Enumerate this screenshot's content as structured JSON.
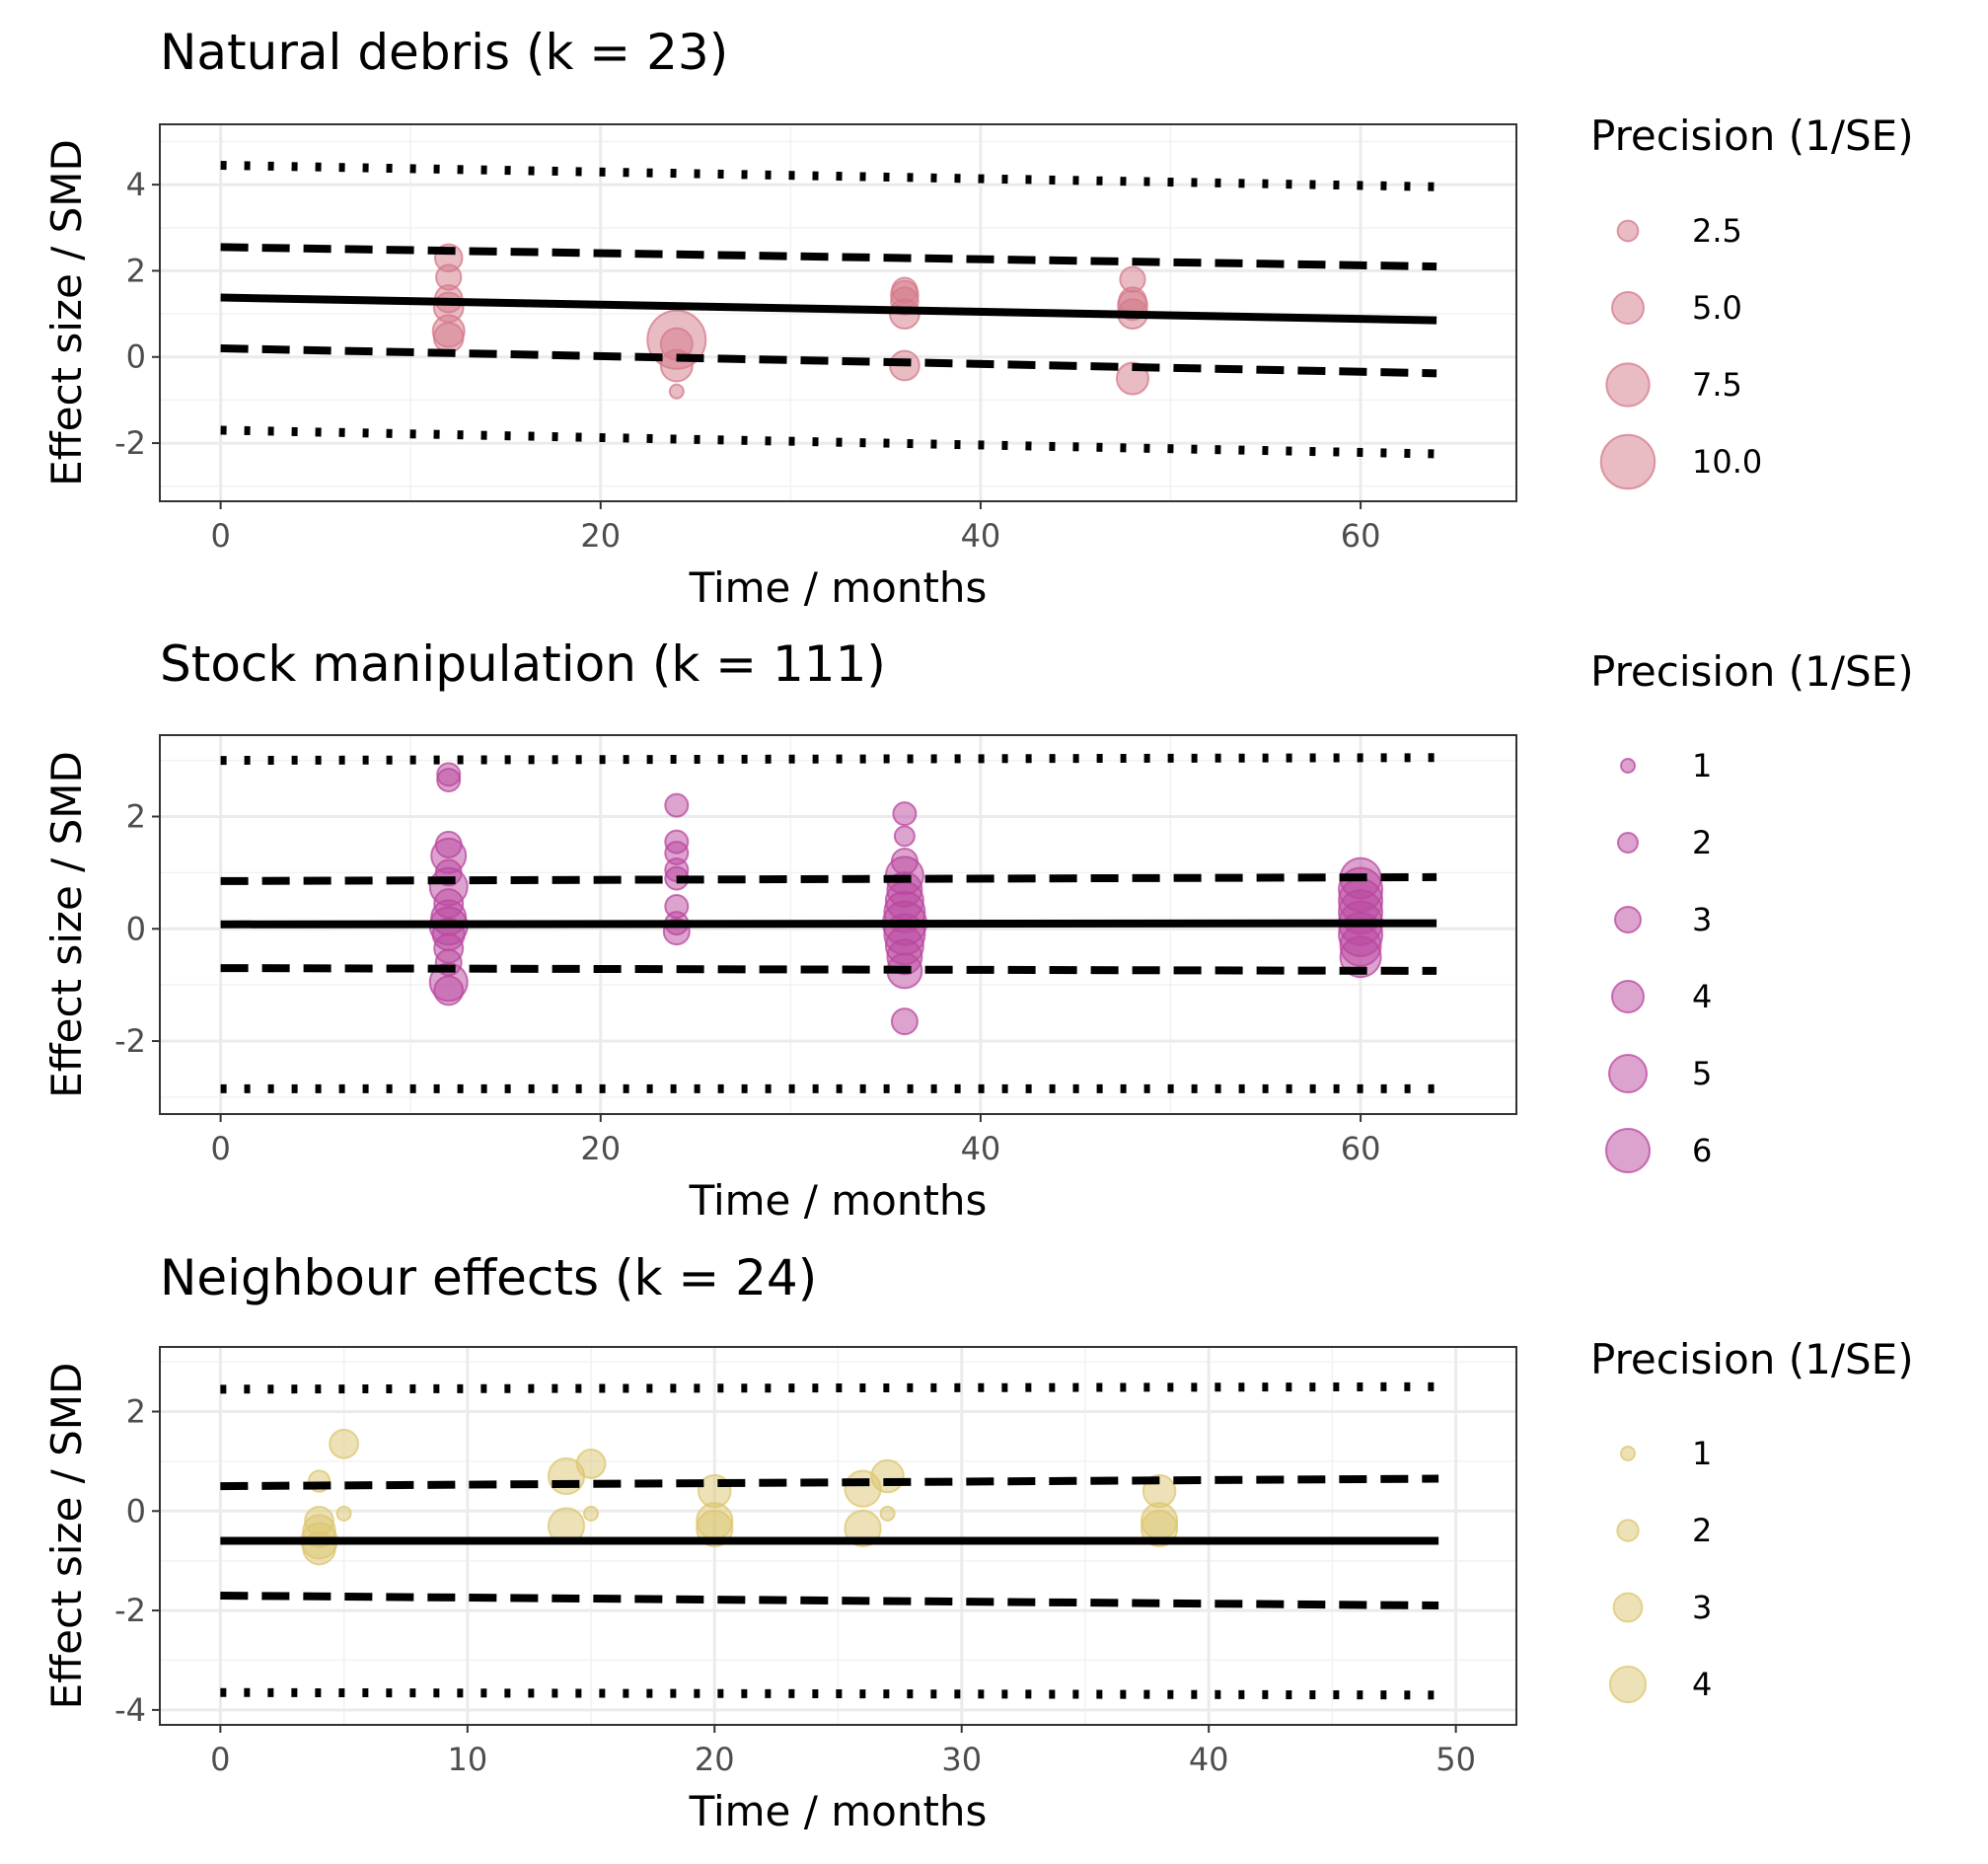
{
  "chart_data": [
    {
      "type": "scatter",
      "title": "Natural debris (k = 23)",
      "xlabel": "Time / months",
      "ylabel": "Effect size / SMD",
      "xlim": [
        -3.2,
        68.2
      ],
      "ylim": [
        -3.35,
        5.4
      ],
      "x_ticks": [
        0,
        20,
        40,
        60
      ],
      "y_ticks": [
        -2,
        0,
        2,
        4
      ],
      "grid": true,
      "color": "#D47A8A",
      "points": [
        {
          "x": 12,
          "y": 2.3,
          "precision": 4.0
        },
        {
          "x": 12,
          "y": 1.85,
          "precision": 3.5
        },
        {
          "x": 12,
          "y": 1.35,
          "precision": 4.0
        },
        {
          "x": 12,
          "y": 1.15,
          "precision": 4.5
        },
        {
          "x": 12,
          "y": 0.6,
          "precision": 5.0
        },
        {
          "x": 12,
          "y": 0.45,
          "precision": 4.5
        },
        {
          "x": 24,
          "y": 0.4,
          "precision": 11.0
        },
        {
          "x": 24,
          "y": 0.3,
          "precision": 5.0
        },
        {
          "x": 24,
          "y": -0.2,
          "precision": 5.0
        },
        {
          "x": 24,
          "y": -0.8,
          "precision": 1.0
        },
        {
          "x": 36,
          "y": 1.55,
          "precision": 3.5
        },
        {
          "x": 36,
          "y": 1.45,
          "precision": 4.0
        },
        {
          "x": 36,
          "y": 1.3,
          "precision": 4.0
        },
        {
          "x": 36,
          "y": 1.0,
          "precision": 4.5
        },
        {
          "x": 36,
          "y": -0.2,
          "precision": 4.5
        },
        {
          "x": 48,
          "y": 1.8,
          "precision": 3.5
        },
        {
          "x": 48,
          "y": 1.3,
          "precision": 4.0
        },
        {
          "x": 48,
          "y": 1.2,
          "precision": 4.5
        },
        {
          "x": 48,
          "y": 1.0,
          "precision": 4.5
        },
        {
          "x": 48,
          "y": -0.5,
          "precision": 5.0
        }
      ],
      "fit": {
        "x": [
          0,
          64
        ],
        "y": [
          1.38,
          0.85
        ]
      },
      "ci_upper": {
        "x": [
          0,
          64
        ],
        "y": [
          2.55,
          2.1
        ]
      },
      "ci_lower": {
        "x": [
          0,
          64
        ],
        "y": [
          0.2,
          -0.38
        ]
      },
      "pi_upper": {
        "x": [
          0,
          64
        ],
        "y": [
          4.45,
          3.95
        ]
      },
      "pi_lower": {
        "x": [
          0,
          64
        ],
        "y": [
          -1.7,
          -2.25
        ]
      },
      "legend": {
        "title": "Precision (1/SE)",
        "labels": [
          "2.5",
          "5.0",
          "7.5",
          "10.0"
        ],
        "values": [
          2.5,
          5.0,
          7.5,
          10.0
        ]
      }
    },
    {
      "type": "scatter",
      "title": "Stock manipulation (k = 111)",
      "xlabel": "Time / months",
      "ylabel": "Effect size / SMD",
      "xlim": [
        -3.2,
        68.2
      ],
      "ylim": [
        -3.3,
        3.45
      ],
      "x_ticks": [
        0,
        20,
        40,
        60
      ],
      "y_ticks": [
        -2,
        0,
        2
      ],
      "grid": true,
      "color": "#B9479F",
      "points": [
        {
          "x": 12,
          "y": 2.75,
          "precision": 2.5
        },
        {
          "x": 12,
          "y": 2.65,
          "precision": 2.5
        },
        {
          "x": 12,
          "y": 1.5,
          "precision": 3.0
        },
        {
          "x": 12,
          "y": 1.3,
          "precision": 4.5
        },
        {
          "x": 12,
          "y": 1.0,
          "precision": 3.0
        },
        {
          "x": 12,
          "y": 0.75,
          "precision": 5.0
        },
        {
          "x": 12,
          "y": 0.45,
          "precision": 3.5
        },
        {
          "x": 12,
          "y": 0.2,
          "precision": 4.5
        },
        {
          "x": 12,
          "y": 0.05,
          "precision": 5.0
        },
        {
          "x": 12,
          "y": -0.1,
          "precision": 4.0
        },
        {
          "x": 12,
          "y": -0.35,
          "precision": 3.5
        },
        {
          "x": 12,
          "y": -0.6,
          "precision": 3.0
        },
        {
          "x": 12,
          "y": -0.95,
          "precision": 5.0
        },
        {
          "x": 12,
          "y": -1.1,
          "precision": 3.5
        },
        {
          "x": 24,
          "y": 2.2,
          "precision": 2.5
        },
        {
          "x": 24,
          "y": 1.55,
          "precision": 2.5
        },
        {
          "x": 24,
          "y": 1.35,
          "precision": 2.5
        },
        {
          "x": 24,
          "y": 1.05,
          "precision": 2.5
        },
        {
          "x": 24,
          "y": 0.9,
          "precision": 2.5
        },
        {
          "x": 24,
          "y": 0.4,
          "precision": 2.5
        },
        {
          "x": 24,
          "y": 0.1,
          "precision": 2.5
        },
        {
          "x": 24,
          "y": -0.05,
          "precision": 3.0
        },
        {
          "x": 36,
          "y": 2.05,
          "precision": 2.5
        },
        {
          "x": 36,
          "y": 1.65,
          "precision": 2.0
        },
        {
          "x": 36,
          "y": 1.2,
          "precision": 3.0
        },
        {
          "x": 36,
          "y": 0.95,
          "precision": 5.0
        },
        {
          "x": 36,
          "y": 0.7,
          "precision": 4.5
        },
        {
          "x": 36,
          "y": 0.5,
          "precision": 5.0
        },
        {
          "x": 36,
          "y": 0.3,
          "precision": 5.5
        },
        {
          "x": 36,
          "y": 0.1,
          "precision": 6.0
        },
        {
          "x": 36,
          "y": -0.1,
          "precision": 5.5
        },
        {
          "x": 36,
          "y": -0.3,
          "precision": 5.0
        },
        {
          "x": 36,
          "y": -0.5,
          "precision": 4.5
        },
        {
          "x": 36,
          "y": -0.75,
          "precision": 4.5
        },
        {
          "x": 36,
          "y": -1.65,
          "precision": 3.0
        },
        {
          "x": 60,
          "y": 0.9,
          "precision": 5.5
        },
        {
          "x": 60,
          "y": 0.7,
          "precision": 6.0
        },
        {
          "x": 60,
          "y": 0.5,
          "precision": 6.0
        },
        {
          "x": 60,
          "y": 0.3,
          "precision": 6.0
        },
        {
          "x": 60,
          "y": 0.1,
          "precision": 6.0
        },
        {
          "x": 60,
          "y": -0.1,
          "precision": 6.0
        },
        {
          "x": 60,
          "y": -0.3,
          "precision": 5.5
        },
        {
          "x": 60,
          "y": -0.5,
          "precision": 5.5
        }
      ],
      "fit": {
        "x": [
          0,
          64
        ],
        "y": [
          0.08,
          0.1
        ]
      },
      "ci_upper": {
        "x": [
          0,
          64
        ],
        "y": [
          0.85,
          0.92
        ]
      },
      "ci_lower": {
        "x": [
          0,
          64
        ],
        "y": [
          -0.7,
          -0.75
        ]
      },
      "pi_upper": {
        "x": [
          0,
          64
        ],
        "y": [
          3.0,
          3.05
        ]
      },
      "pi_lower": {
        "x": [
          0,
          64
        ],
        "y": [
          -2.85,
          -2.85
        ]
      },
      "legend": {
        "title": "Precision (1/SE)",
        "labels": [
          "1",
          "2",
          "3",
          "4",
          "5",
          "6"
        ],
        "values": [
          1,
          2,
          3,
          4,
          5,
          6
        ]
      }
    },
    {
      "type": "scatter",
      "title": "Neighbour effects (k = 24)",
      "xlabel": "Time / months",
      "ylabel": "Effect size / SMD",
      "xlim": [
        -2.45,
        52.45
      ],
      "ylim": [
        -4.3,
        3.3
      ],
      "x_ticks": [
        0,
        10,
        20,
        30,
        40,
        50
      ],
      "y_ticks": [
        -4,
        -2,
        0,
        2
      ],
      "grid": true,
      "color": "#DCC56F",
      "points": [
        {
          "x": 4,
          "y": 0.6,
          "precision": 2.0
        },
        {
          "x": 4,
          "y": -0.2,
          "precision": 3.0
        },
        {
          "x": 4,
          "y": -0.4,
          "precision": 3.5
        },
        {
          "x": 4,
          "y": -0.6,
          "precision": 4.0
        },
        {
          "x": 4,
          "y": -0.75,
          "precision": 3.5
        },
        {
          "x": 5,
          "y": 1.35,
          "precision": 3.0
        },
        {
          "x": 5,
          "y": -0.05,
          "precision": 1.0
        },
        {
          "x": 14,
          "y": 0.7,
          "precision": 4.0
        },
        {
          "x": 14,
          "y": -0.3,
          "precision": 4.0
        },
        {
          "x": 15,
          "y": 0.95,
          "precision": 3.0
        },
        {
          "x": 15,
          "y": -0.05,
          "precision": 1.0
        },
        {
          "x": 20,
          "y": 0.4,
          "precision": 3.5
        },
        {
          "x": 20,
          "y": -0.2,
          "precision": 4.0
        },
        {
          "x": 20,
          "y": -0.35,
          "precision": 4.0
        },
        {
          "x": 26,
          "y": 0.45,
          "precision": 4.0
        },
        {
          "x": 26,
          "y": -0.35,
          "precision": 4.0
        },
        {
          "x": 27,
          "y": 0.7,
          "precision": 3.5
        },
        {
          "x": 27,
          "y": -0.05,
          "precision": 1.0
        },
        {
          "x": 38,
          "y": 0.4,
          "precision": 3.5
        },
        {
          "x": 38,
          "y": -0.2,
          "precision": 4.0
        },
        {
          "x": 38,
          "y": -0.35,
          "precision": 4.0
        }
      ],
      "fit": {
        "x": [
          0,
          49.3
        ],
        "y": [
          -0.6,
          -0.6
        ]
      },
      "ci_upper": {
        "x": [
          0,
          49.3
        ],
        "y": [
          0.5,
          0.65
        ]
      },
      "ci_lower": {
        "x": [
          0,
          49.3
        ],
        "y": [
          -1.7,
          -1.9
        ]
      },
      "pi_upper": {
        "x": [
          0,
          49.3
        ],
        "y": [
          2.45,
          2.5
        ]
      },
      "pi_lower": {
        "x": [
          0,
          49.3
        ],
        "y": [
          -3.65,
          -3.7
        ]
      },
      "legend": {
        "title": "Precision (1/SE)",
        "labels": [
          "1",
          "2",
          "3",
          "4"
        ],
        "values": [
          1,
          2,
          3,
          4
        ]
      }
    }
  ]
}
